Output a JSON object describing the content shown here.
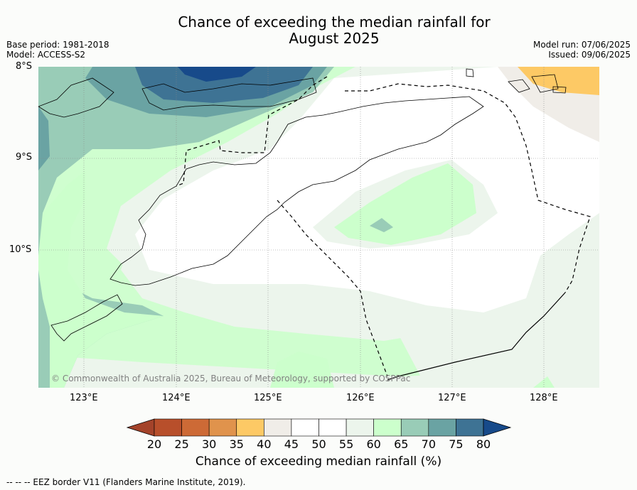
{
  "title_line1": "Chance of exceeding the median rainfall for",
  "title_line2": "August 2025",
  "base_period": "Base period: 1981-2018",
  "model": "Model: ACCESS-S2",
  "model_run": "Model run: 07/06/2025",
  "issued": "Issued: 09/06/2025",
  "lat_labels": [
    "8°S",
    "9°S",
    "10°S"
  ],
  "lon_labels": [
    "123°E",
    "124°E",
    "125°E",
    "126°E",
    "127°E",
    "128°E"
  ],
  "copyright": "© Commonwealth of Australia 2025, Bureau of Meteorology, supported by COSPPac",
  "colorbar": {
    "label": "Chance of exceeding median rainfall (%)",
    "ticks": [
      "20",
      "25",
      "30",
      "35",
      "40",
      "45",
      "50",
      "55",
      "60",
      "65",
      "70",
      "75",
      "80"
    ],
    "colors": [
      "#a4432a",
      "#b84f2b",
      "#cd6a36",
      "#e0934c",
      "#fdc965",
      "#f0ede8",
      "#ffffff",
      "#ffffff",
      "#ecf5ec",
      "#ccffcc",
      "#99ccb7",
      "#6aa3a3",
      "#3e7394",
      "#174a8a"
    ]
  },
  "footnote": "--  --  -- EEZ border V11 (Flanders Marine Institute, 2019)."
}
